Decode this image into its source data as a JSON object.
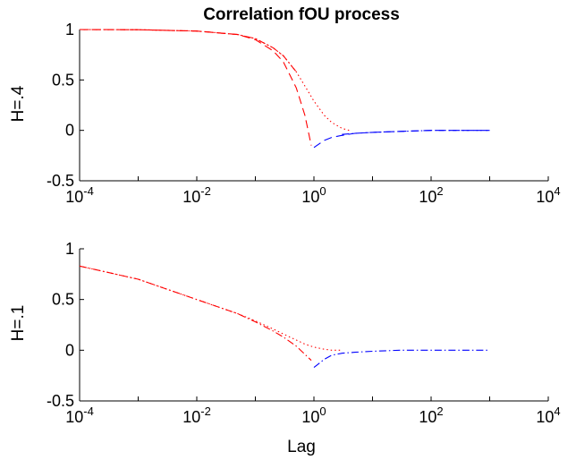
{
  "chart_data": [
    {
      "type": "line",
      "title": "Correlation fOU process",
      "xlabel": "",
      "ylabel": "H=.4",
      "xscale": "log",
      "xlim": [
        0.0001,
        10000
      ],
      "ylim": [
        -0.5,
        1
      ],
      "xticks": [
        0.0001,
        0.01,
        1,
        100,
        10000
      ],
      "xtick_labels": [
        {
          "base": "10",
          "exp": "-4"
        },
        {
          "base": "10",
          "exp": "-2"
        },
        {
          "base": "10",
          "exp": "0"
        },
        {
          "base": "10",
          "exp": "2"
        },
        {
          "base": "10",
          "exp": "4"
        }
      ],
      "yticks": [
        -0.5,
        0,
        0.5,
        1
      ],
      "ytick_labels": [
        "-0.5",
        "0",
        "0.5",
        "1"
      ],
      "grid": false,
      "series": [
        {
          "color": "#ff0000",
          "dash": "dotted",
          "x": [
            0.0001,
            0.001,
            0.01,
            0.05,
            0.1,
            0.2,
            0.3,
            0.5,
            0.7,
            1,
            1.5,
            2,
            3,
            4
          ],
          "y": [
            1.0,
            0.998,
            0.985,
            0.95,
            0.91,
            0.82,
            0.74,
            0.58,
            0.44,
            0.29,
            0.15,
            0.08,
            0.02,
            0.0
          ]
        },
        {
          "color": "#ff0000",
          "dash": "dashed",
          "x": [
            0.0001,
            0.001,
            0.01,
            0.05,
            0.1,
            0.2,
            0.3,
            0.5,
            0.7,
            0.9
          ],
          "y": [
            1.0,
            0.998,
            0.985,
            0.95,
            0.9,
            0.79,
            0.68,
            0.42,
            0.15,
            -0.15
          ]
        },
        {
          "color": "#0000ff",
          "dash": "dashed",
          "x": [
            1,
            1.5,
            2,
            3,
            5,
            10,
            30,
            100,
            300,
            1000
          ],
          "y": [
            -0.17,
            -0.1,
            -0.07,
            -0.05,
            -0.03,
            -0.02,
            -0.01,
            0.0,
            0.0,
            0.0
          ]
        },
        {
          "color": "#ff0000",
          "dash": "dashdot",
          "x": [
            0.0001,
            0.001,
            0.01,
            0.05,
            0.1,
            0.2,
            0.3,
            0.5
          ],
          "y": [
            1.0,
            0.998,
            0.985,
            0.95,
            0.91,
            0.82,
            0.74,
            0.58
          ]
        },
        {
          "color": "#0000ff",
          "dash": "dashdot",
          "x": [
            3,
            5,
            10,
            30,
            100,
            300,
            1000
          ],
          "y": [
            -0.04,
            -0.03,
            -0.02,
            -0.01,
            0.0,
            0.0,
            0.0
          ]
        }
      ]
    },
    {
      "type": "line",
      "title": "",
      "xlabel": "Lag",
      "ylabel": "H=.1",
      "xscale": "log",
      "xlim": [
        0.0001,
        10000
      ],
      "ylim": [
        -0.5,
        1
      ],
      "xticks": [
        0.0001,
        0.01,
        1,
        100,
        10000
      ],
      "xtick_labels": [
        {
          "base": "10",
          "exp": "-4"
        },
        {
          "base": "10",
          "exp": "-2"
        },
        {
          "base": "10",
          "exp": "0"
        },
        {
          "base": "10",
          "exp": "2"
        },
        {
          "base": "10",
          "exp": "4"
        }
      ],
      "yticks": [
        -0.5,
        0,
        0.5,
        1
      ],
      "ytick_labels": [
        "-0.5",
        "0",
        "0.5",
        "1"
      ],
      "grid": false,
      "series": [
        {
          "color": "#ff0000",
          "dash": "dotted",
          "x": [
            0.0001,
            0.001,
            0.01,
            0.05,
            0.1,
            0.2,
            0.3,
            0.5,
            0.7,
            1,
            1.5,
            2,
            3
          ],
          "y": [
            0.83,
            0.7,
            0.5,
            0.36,
            0.29,
            0.21,
            0.16,
            0.1,
            0.06,
            0.03,
            0.01,
            0.0,
            0.0
          ]
        },
        {
          "color": "#ff0000",
          "dash": "dashdot",
          "x": [
            0.0001,
            0.001,
            0.01,
            0.05,
            0.1,
            0.2,
            0.3,
            0.5,
            0.7,
            0.9
          ],
          "y": [
            0.83,
            0.7,
            0.5,
            0.36,
            0.28,
            0.19,
            0.13,
            0.04,
            -0.04,
            -0.1
          ]
        },
        {
          "color": "#0000ff",
          "dash": "dashdot",
          "x": [
            1,
            1.5,
            2,
            3,
            5,
            10,
            30,
            100,
            300,
            1000
          ],
          "y": [
            -0.17,
            -0.09,
            -0.05,
            -0.03,
            -0.02,
            -0.01,
            0.0,
            0.0,
            0.0,
            0.0
          ]
        }
      ]
    }
  ]
}
